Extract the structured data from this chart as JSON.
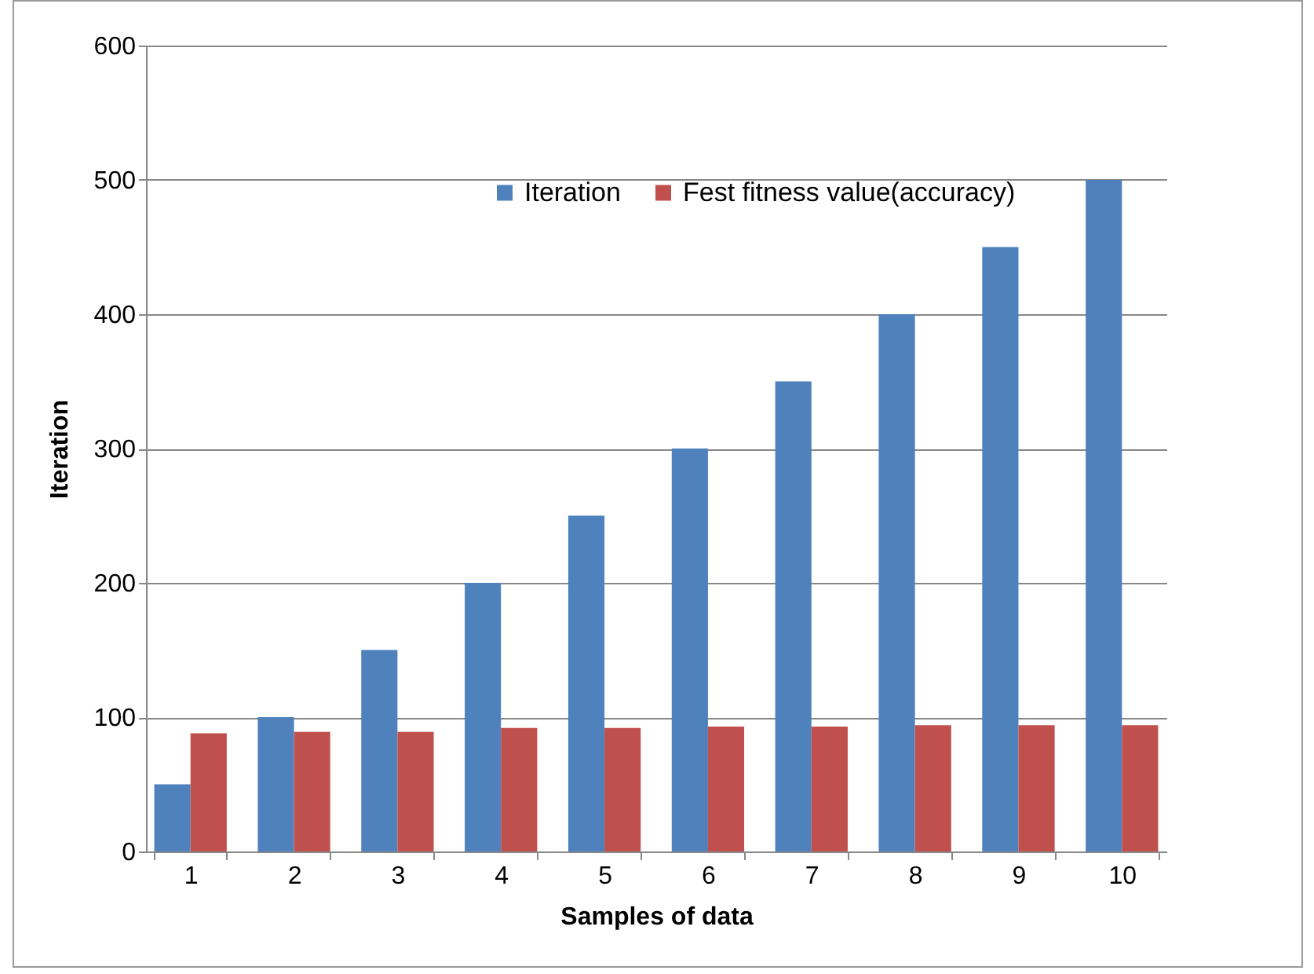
{
  "chart_data": {
    "type": "bar",
    "xlabel": "Samples of data",
    "ylabel": "Iteration",
    "categories": [
      "1",
      "2",
      "3",
      "4",
      "5",
      "6",
      "7",
      "8",
      "9",
      "10"
    ],
    "series": [
      {
        "name": "Iteration",
        "color": "#4f81bd",
        "values": [
          50,
          100,
          150,
          200,
          250,
          300,
          350,
          400,
          450,
          500
        ]
      },
      {
        "name": "Fest fitness value(accuracy)",
        "color": "#c0504d",
        "values": [
          88,
          89,
          89,
          92,
          92,
          93,
          93,
          94,
          94,
          94
        ]
      }
    ],
    "ylim": [
      0,
      600
    ],
    "yticks": [
      0,
      100,
      200,
      300,
      400,
      500,
      600
    ],
    "grid": "y",
    "legend": "top"
  }
}
